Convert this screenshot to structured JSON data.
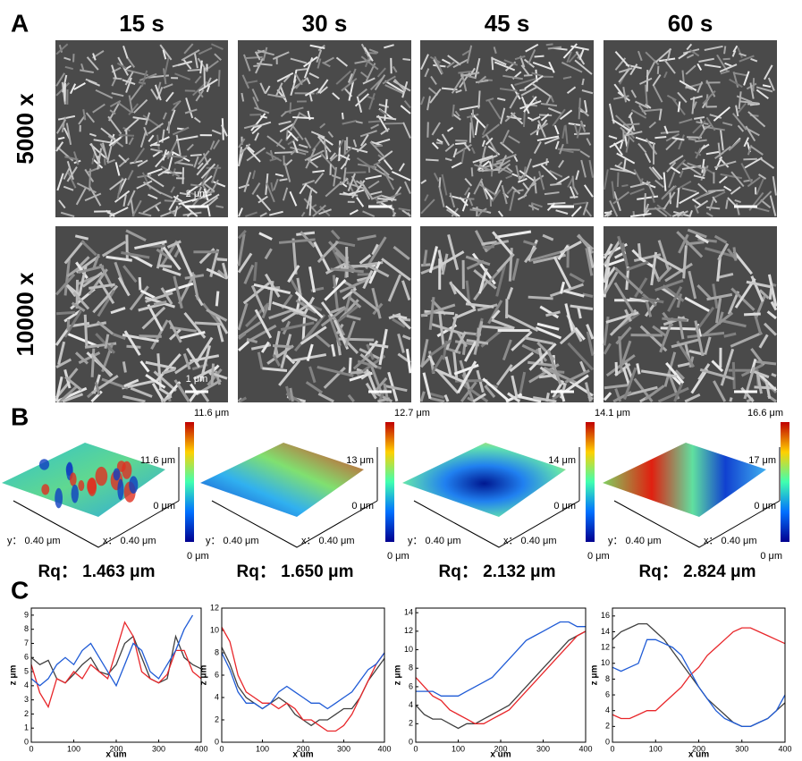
{
  "panel_a": {
    "label": "A",
    "columns": [
      "15 s",
      "30 s",
      "45 s",
      "60 s"
    ],
    "rows": [
      "5000 x",
      "10000 x"
    ],
    "scale_bars": [
      "2 μm",
      "1 μm"
    ]
  },
  "panel_b": {
    "label": "B",
    "plots": [
      {
        "colorbar_max": "11.6 μm",
        "colorbar_min": "0 μm",
        "z_max": "11.6 μm",
        "z_min": "0 μm",
        "y_axis": "y： 0.40 μm",
        "x_axis": "x： 0.40 μm",
        "rq": "Rq： 1.463 μm"
      },
      {
        "colorbar_max": "12.7 μm",
        "colorbar_min": "0 μm",
        "z_max": "13 μm",
        "z_min": "0 μm",
        "y_axis": "y： 0.40 μm",
        "x_axis": "x： 0.40 μm",
        "rq": "Rq： 1.650 μm"
      },
      {
        "colorbar_max": "14.1 μm",
        "colorbar_min": "0 μm",
        "z_max": "14 μm",
        "z_min": "0 μm",
        "y_axis": "y： 0.40 μm",
        "x_axis": "x： 0.40 μm",
        "rq": "Rq： 2.132 μm"
      },
      {
        "colorbar_max": "16.6 μm",
        "colorbar_min": "0 μm",
        "z_max": "17 μm",
        "z_min": "0 μm",
        "y_axis": "y： 0.40 μm",
        "x_axis": "x： 0.40 μm",
        "rq": "Rq： 2.824 μm"
      }
    ]
  },
  "panel_c": {
    "label": "C"
  },
  "chart_data": [
    {
      "type": "line",
      "x_label": "x um",
      "y_label": "z μm",
      "x": [
        0,
        20,
        40,
        60,
        80,
        100,
        120,
        140,
        160,
        180,
        200,
        220,
        240,
        260,
        280,
        300,
        320,
        340,
        360,
        380,
        400
      ],
      "xlim": [
        0,
        400
      ],
      "xticks": [
        0,
        100,
        200,
        300,
        400
      ],
      "ylim": [
        0,
        9.5
      ],
      "yticks": [
        0,
        1,
        2,
        3,
        4,
        5,
        6,
        7,
        8,
        9
      ],
      "series": [
        {
          "color": "#404040",
          "values": [
            6,
            5.5,
            5.8,
            4.5,
            4.2,
            4.8,
            5.5,
            6,
            5,
            4.8,
            5.5,
            7,
            7.5,
            6,
            4.5,
            4.2,
            4.5,
            7.5,
            6,
            5.5,
            5.2
          ]
        },
        {
          "color": "#e8262a",
          "values": [
            5.5,
            3.5,
            2.5,
            4.5,
            4.2,
            5,
            4.5,
            5.5,
            5,
            4.5,
            6.5,
            8.5,
            7.5,
            5,
            4.5,
            4.2,
            4.8,
            6.5,
            6.5,
            5,
            4.5
          ]
        },
        {
          "color": "#1f5bd6",
          "values": [
            4.5,
            4,
            4.5,
            5.5,
            6,
            5.5,
            6.5,
            7,
            6,
            5,
            4,
            5.5,
            7,
            6.5,
            5,
            4.5,
            5.5,
            6.5,
            8,
            9,
            null
          ]
        }
      ]
    },
    {
      "type": "line",
      "x_label": "x um",
      "y_label": "z μm",
      "x": [
        0,
        20,
        40,
        60,
        80,
        100,
        120,
        140,
        160,
        180,
        200,
        220,
        240,
        260,
        280,
        300,
        320,
        340,
        360,
        380,
        400
      ],
      "xlim": [
        0,
        400
      ],
      "xticks": [
        0,
        100,
        200,
        300,
        400
      ],
      "ylim": [
        0,
        12
      ],
      "yticks": [
        0,
        2,
        4,
        6,
        8,
        10,
        12
      ],
      "series": [
        {
          "color": "#404040",
          "values": [
            8.5,
            7,
            5,
            4,
            3.5,
            3,
            3.5,
            4,
            3.5,
            2.5,
            2,
            1.5,
            2,
            2,
            2.5,
            3,
            3,
            4,
            5.5,
            6.5,
            7.5
          ]
        },
        {
          "color": "#e8262a",
          "values": [
            10.3,
            9,
            6,
            4.5,
            4,
            3.5,
            3.5,
            3,
            3.5,
            3,
            2,
            2,
            1.5,
            1,
            1,
            1.5,
            2.5,
            4,
            5.5,
            7,
            8
          ]
        },
        {
          "color": "#1f5bd6",
          "values": [
            8,
            6.5,
            4.5,
            3.5,
            3.5,
            3,
            3.5,
            4.5,
            5,
            4.5,
            4,
            3.5,
            3.5,
            3,
            3.5,
            4,
            4.5,
            5.5,
            6.5,
            7,
            8
          ]
        }
      ]
    },
    {
      "type": "line",
      "x_label": "x um",
      "y_label": "z μm",
      "x": [
        0,
        20,
        40,
        60,
        80,
        100,
        120,
        140,
        160,
        180,
        200,
        220,
        240,
        260,
        280,
        300,
        320,
        340,
        360,
        380,
        400
      ],
      "xlim": [
        0,
        400
      ],
      "xticks": [
        0,
        100,
        200,
        300,
        400
      ],
      "ylim": [
        0,
        14.5
      ],
      "yticks": [
        0,
        2,
        4,
        6,
        8,
        10,
        12,
        14
      ],
      "series": [
        {
          "color": "#404040",
          "values": [
            4,
            3,
            2.5,
            2.5,
            2,
            1.5,
            2,
            2,
            2.5,
            3,
            3.5,
            4,
            5,
            6,
            7,
            8,
            9,
            10,
            11,
            11.5,
            12
          ]
        },
        {
          "color": "#e8262a",
          "values": [
            7,
            6,
            5,
            4.5,
            3.5,
            3,
            2.5,
            2,
            2,
            2.5,
            3,
            3.5,
            4.5,
            5.5,
            6.5,
            7.5,
            8.5,
            9.5,
            10.5,
            11.5,
            12
          ]
        },
        {
          "color": "#1f5bd6",
          "values": [
            5.5,
            5.5,
            5.5,
            5,
            5,
            5,
            5.5,
            6,
            6.5,
            7,
            8,
            9,
            10,
            11,
            11.5,
            12,
            12.5,
            13,
            13,
            12.5,
            12.5
          ]
        }
      ]
    },
    {
      "type": "line",
      "x_label": "x um",
      "y_label": "z μm",
      "x": [
        0,
        20,
        40,
        60,
        80,
        100,
        120,
        140,
        160,
        180,
        200,
        220,
        240,
        260,
        280,
        300,
        320,
        340,
        360,
        380,
        400
      ],
      "xlim": [
        0,
        400
      ],
      "xticks": [
        0,
        100,
        200,
        300,
        400
      ],
      "ylim": [
        0,
        17
      ],
      "yticks": [
        0,
        2,
        4,
        6,
        8,
        10,
        12,
        14,
        16
      ],
      "series": [
        {
          "color": "#404040",
          "values": [
            13,
            14,
            14.5,
            15,
            15,
            14,
            13,
            11.5,
            10,
            8.5,
            7,
            5.5,
            4.5,
            3.5,
            2.5,
            2,
            2,
            2.5,
            3,
            4,
            5
          ]
        },
        {
          "color": "#e8262a",
          "values": [
            3.5,
            3,
            3,
            3.5,
            4,
            4,
            5,
            6,
            7,
            8.5,
            9.5,
            11,
            12,
            13,
            14,
            14.5,
            14.5,
            14,
            13.5,
            13,
            12.5
          ]
        },
        {
          "color": "#1f5bd6",
          "values": [
            9.5,
            9,
            9.5,
            10,
            13,
            13,
            12.5,
            12,
            11,
            9,
            7,
            5.5,
            4,
            3,
            2.5,
            2,
            2,
            2.5,
            3,
            4,
            6
          ]
        }
      ]
    }
  ]
}
